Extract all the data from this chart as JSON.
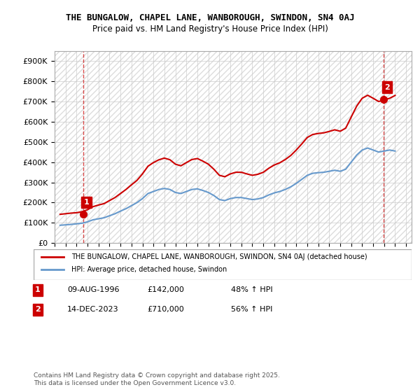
{
  "title_line1": "THE BUNGALOW, CHAPEL LANE, WANBOROUGH, SWINDON, SN4 0AJ",
  "title_line2": "Price paid vs. HM Land Registry's House Price Index (HPI)",
  "xlim_start": 1994.0,
  "xlim_end": 2026.5,
  "ylim_min": 0,
  "ylim_max": 950000,
  "yticks": [
    0,
    100000,
    200000,
    300000,
    400000,
    500000,
    600000,
    700000,
    800000,
    900000
  ],
  "ytick_labels": [
    "£0",
    "£100K",
    "£200K",
    "£300K",
    "£400K",
    "£500K",
    "£600K",
    "£700K",
    "£800K",
    "£900K"
  ],
  "sale1_x": 1996.61,
  "sale1_y": 142000,
  "sale1_label": "1",
  "sale2_x": 2023.96,
  "sale2_y": 710000,
  "sale2_label": "2",
  "red_line_color": "#cc0000",
  "blue_line_color": "#6699cc",
  "marker_box_color": "#cc0000",
  "background_color": "#ffffff",
  "plot_bg_color": "#ffffff",
  "grid_color": "#cccccc",
  "hatch_color": "#e8e8e8",
  "legend_label_red": "THE BUNGALOW, CHAPEL LANE, WANBOROUGH, SWINDON, SN4 0AJ (detached house)",
  "legend_label_blue": "HPI: Average price, detached house, Swindon",
  "annotation1_date": "09-AUG-1996",
  "annotation1_price": "£142,000",
  "annotation1_hpi": "48% ↑ HPI",
  "annotation2_date": "14-DEC-2023",
  "annotation2_price": "£710,000",
  "annotation2_hpi": "56% ↑ HPI",
  "footer": "Contains HM Land Registry data © Crown copyright and database right 2025.\nThis data is licensed under the Open Government Licence v3.0.",
  "hpi_data_x": [
    1994.5,
    1995.0,
    1995.5,
    1996.0,
    1996.5,
    1997.0,
    1997.5,
    1998.0,
    1998.5,
    1999.0,
    1999.5,
    2000.0,
    2000.5,
    2001.0,
    2001.5,
    2002.0,
    2002.5,
    2003.0,
    2003.5,
    2004.0,
    2004.5,
    2005.0,
    2005.5,
    2006.0,
    2006.5,
    2007.0,
    2007.5,
    2008.0,
    2008.5,
    2009.0,
    2009.5,
    2010.0,
    2010.5,
    2011.0,
    2011.5,
    2012.0,
    2012.5,
    2013.0,
    2013.5,
    2014.0,
    2014.5,
    2015.0,
    2015.5,
    2016.0,
    2016.5,
    2017.0,
    2017.5,
    2018.0,
    2018.5,
    2019.0,
    2019.5,
    2020.0,
    2020.5,
    2021.0,
    2021.5,
    2022.0,
    2022.5,
    2023.0,
    2023.5,
    2024.0,
    2024.5,
    2025.0
  ],
  "hpi_data_y": [
    88000,
    90000,
    92000,
    95000,
    98000,
    105000,
    115000,
    120000,
    125000,
    135000,
    145000,
    158000,
    170000,
    185000,
    200000,
    220000,
    245000,
    255000,
    265000,
    270000,
    265000,
    250000,
    245000,
    255000,
    265000,
    268000,
    260000,
    250000,
    235000,
    215000,
    210000,
    220000,
    225000,
    225000,
    220000,
    215000,
    218000,
    225000,
    238000,
    248000,
    255000,
    265000,
    278000,
    295000,
    315000,
    335000,
    345000,
    348000,
    350000,
    355000,
    360000,
    355000,
    365000,
    400000,
    435000,
    460000,
    470000,
    460000,
    450000,
    455000,
    460000,
    455000
  ],
  "red_line_x": [
    1994.5,
    1995.0,
    1995.5,
    1996.0,
    1996.5,
    1997.0,
    1997.5,
    1998.0,
    1998.5,
    1999.0,
    1999.5,
    2000.0,
    2000.5,
    2001.0,
    2001.5,
    2002.0,
    2002.5,
    2003.0,
    2003.5,
    2004.0,
    2004.5,
    2005.0,
    2005.5,
    2006.0,
    2006.5,
    2007.0,
    2007.5,
    2008.0,
    2008.5,
    2009.0,
    2009.5,
    2010.0,
    2010.5,
    2011.0,
    2011.5,
    2012.0,
    2012.5,
    2013.0,
    2013.5,
    2014.0,
    2014.5,
    2015.0,
    2015.5,
    2016.0,
    2016.5,
    2017.0,
    2017.5,
    2018.0,
    2018.5,
    2019.0,
    2019.5,
    2020.0,
    2020.5,
    2021.0,
    2021.5,
    2022.0,
    2022.5,
    2023.0,
    2023.5,
    2024.0,
    2024.5,
    2025.0
  ],
  "red_line_y": [
    142000,
    145000,
    148000,
    150000,
    155000,
    165000,
    180000,
    188000,
    195000,
    210000,
    225000,
    245000,
    265000,
    288000,
    310000,
    342000,
    380000,
    398000,
    412000,
    420000,
    412000,
    390000,
    382000,
    398000,
    413000,
    418000,
    405000,
    390000,
    365000,
    335000,
    328000,
    342000,
    350000,
    350000,
    342000,
    335000,
    340000,
    350000,
    370000,
    386000,
    397000,
    413000,
    433000,
    460000,
    490000,
    522000,
    537000,
    542000,
    545000,
    552000,
    560000,
    553000,
    568000,
    623000,
    677000,
    716000,
    731000,
    716000,
    700000,
    708000,
    716000,
    730000
  ]
}
